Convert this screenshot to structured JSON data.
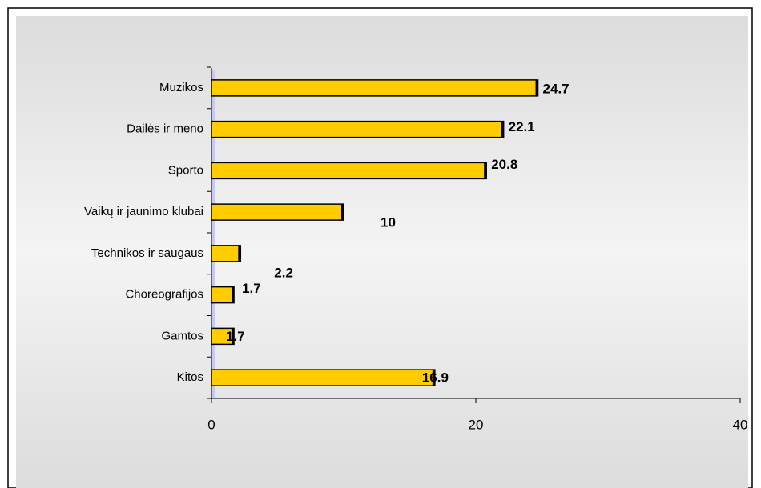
{
  "chart_data": {
    "type": "bar",
    "orientation": "horizontal",
    "categories": [
      "Muzikos",
      "Dailės ir meno",
      "Sporto",
      "Vaikų ir jaunimo klubai",
      "Technikos ir saugaus",
      "Choreografijos",
      "Gamtos",
      "Kitos"
    ],
    "values": [
      24.7,
      22.1,
      20.8,
      10,
      2.2,
      1.7,
      1.7,
      16.9
    ],
    "color": "#ffcc00",
    "xlim": [
      0,
      40
    ],
    "xticks": [
      0,
      20,
      40
    ]
  }
}
